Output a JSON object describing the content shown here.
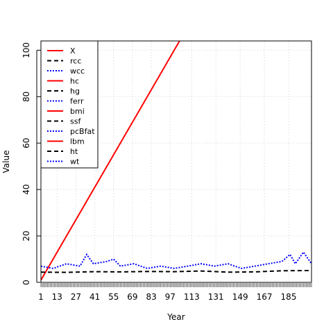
{
  "chart_data": {
    "type": "line",
    "title": "",
    "xlabel": "Year",
    "ylabel": "Value",
    "xlim": [
      1,
      202
    ],
    "ylim": [
      0,
      104
    ],
    "grid": true,
    "legend_position": "top-left",
    "x_tick_labels": [
      "1",
      "13",
      "27",
      "41",
      "55",
      "69",
      "83",
      "97",
      "113",
      "131",
      "149",
      "167",
      "185"
    ],
    "y_tick_labels": [
      "0",
      "20",
      "40",
      "60",
      "80",
      "100"
    ],
    "series": [
      {
        "name": "X",
        "color": "#ff0000",
        "linestyle": "solid",
        "description": "linear: value equals observation index",
        "x": [
          1,
          202
        ],
        "y": [
          1,
          202
        ]
      },
      {
        "name": "rcc",
        "color": "#000000",
        "linestyle": "dashed",
        "x": [
          1,
          20,
          40,
          60,
          80,
          100,
          120,
          140,
          160,
          180,
          202
        ],
        "y": [
          4.4,
          4.3,
          4.6,
          4.5,
          4.7,
          4.6,
          4.9,
          4.4,
          4.5,
          5.0,
          5.1
        ]
      },
      {
        "name": "wcc",
        "color": "#0000ff",
        "linestyle": "dotted",
        "x": [
          1,
          10,
          20,
          30,
          35,
          40,
          50,
          55,
          60,
          70,
          80,
          90,
          100,
          110,
          120,
          130,
          140,
          150,
          160,
          170,
          180,
          186,
          190,
          196,
          202
        ],
        "y": [
          7,
          6,
          8,
          7,
          12,
          8,
          9,
          10,
          7,
          8,
          6,
          7,
          6,
          7,
          8,
          7,
          8,
          6,
          7,
          8,
          9,
          12,
          8,
          13,
          8
        ]
      },
      {
        "name": "hc",
        "color": "#ff0000",
        "linestyle": "solid",
        "x": [],
        "y": []
      },
      {
        "name": "hg",
        "color": "#000000",
        "linestyle": "dashed",
        "x": [],
        "y": []
      },
      {
        "name": "ferr",
        "color": "#0000ff",
        "linestyle": "dotted",
        "x": [],
        "y": []
      },
      {
        "name": "bmi",
        "color": "#ff0000",
        "linestyle": "solid",
        "x": [],
        "y": []
      },
      {
        "name": "ssf",
        "color": "#000000",
        "linestyle": "dashed",
        "x": [],
        "y": []
      },
      {
        "name": "pcBfat",
        "color": "#0000ff",
        "linestyle": "dotted",
        "x": [],
        "y": []
      },
      {
        "name": "lbm",
        "color": "#ff0000",
        "linestyle": "solid",
        "x": [],
        "y": []
      },
      {
        "name": "ht",
        "color": "#000000",
        "linestyle": "dashed",
        "x": [],
        "y": []
      },
      {
        "name": "wt",
        "color": "#0000ff",
        "linestyle": "dotted",
        "x": [],
        "y": []
      }
    ]
  }
}
